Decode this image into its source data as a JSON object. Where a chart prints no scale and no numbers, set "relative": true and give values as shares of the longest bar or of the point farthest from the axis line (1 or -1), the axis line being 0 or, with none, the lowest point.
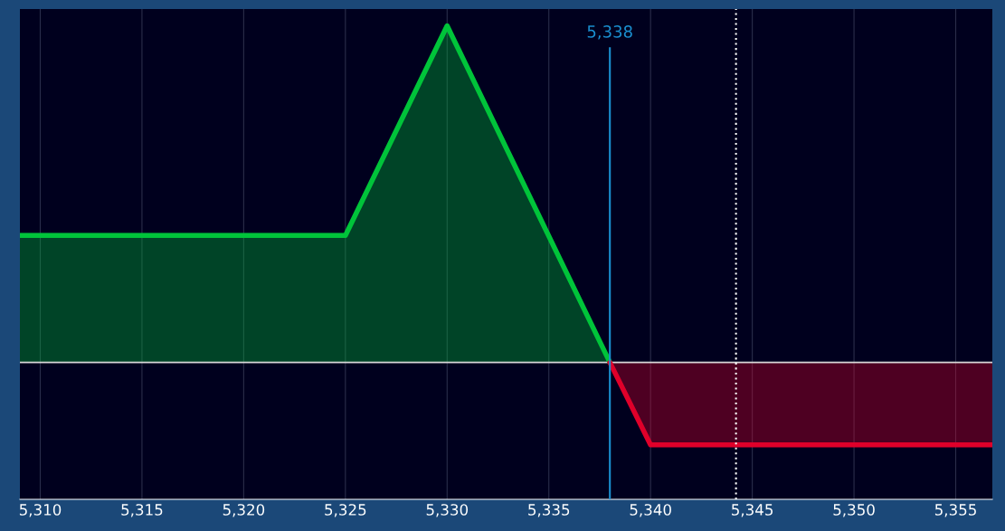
{
  "chart_data": {
    "type": "area",
    "relative": true,
    "series": [
      {
        "x": [
          5309,
          5325,
          5330,
          5338
        ],
        "values": [
          0.377,
          0.377,
          1,
          0
        ],
        "color": "#00c43a"
      },
      {
        "x": [
          5338,
          5340,
          5356.8
        ],
        "values": [
          0,
          -0.245,
          -0.245
        ],
        "color": "#e0002a"
      }
    ],
    "xlim": [
      5309,
      5356.8
    ],
    "xticks": [
      {
        "value": 5310,
        "label": "5,310"
      },
      {
        "value": 5315,
        "label": "5,315"
      },
      {
        "value": 5320,
        "label": "5,320"
      },
      {
        "value": 5325,
        "label": "5,325"
      },
      {
        "value": 5330,
        "label": "5,330"
      },
      {
        "value": 5335,
        "label": "5,335"
      },
      {
        "value": 5340,
        "label": "5,340"
      },
      {
        "value": 5345,
        "label": "5,345"
      },
      {
        "value": 5350,
        "label": "5,350"
      },
      {
        "value": 5355,
        "label": "5,355"
      }
    ],
    "ref_lines": [
      {
        "axis": "x",
        "value": 5338,
        "label": "5,338",
        "color": "#1a8fd0",
        "line_style": "solid"
      },
      {
        "axis": "x",
        "value": 5344.2,
        "color": "#ffffff",
        "line_style": "dotted"
      },
      {
        "axis": "y",
        "value": 0,
        "color": "#d8d8d8",
        "line_style": "solid"
      }
    ],
    "grid": "x",
    "tick_labels": "x"
  }
}
